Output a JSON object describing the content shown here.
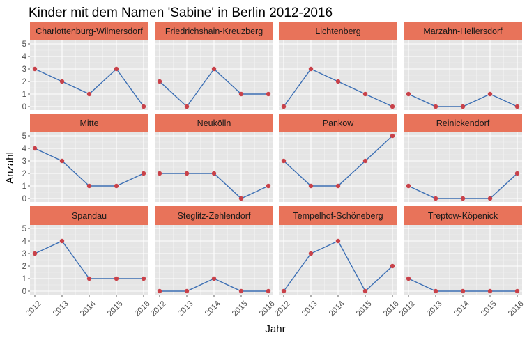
{
  "chart_data": {
    "type": "line",
    "title": "Kinder mit dem Namen 'Sabine' in Berlin 2012-2016",
    "xlabel": "Jahr",
    "ylabel": "Anzahl",
    "x": [
      2012,
      2013,
      2014,
      2015,
      2016
    ],
    "ylim": [
      0,
      5
    ],
    "y_ticks": [
      0,
      1,
      2,
      3,
      4,
      5
    ],
    "grid": true,
    "colors": {
      "panel_background": "#e5e5e5",
      "strip_background": "#e8735a",
      "line": "#3c6fb4",
      "point": "#c9424a"
    },
    "panels": [
      {
        "name": "Charlottenburg-Wilmersdorf",
        "values": [
          3,
          2,
          1,
          3,
          0
        ]
      },
      {
        "name": "Friedrichshain-Kreuzberg",
        "values": [
          2,
          0,
          3,
          1,
          1
        ]
      },
      {
        "name": "Lichtenberg",
        "values": [
          0,
          3,
          2,
          1,
          0
        ]
      },
      {
        "name": "Marzahn-Hellersdorf",
        "values": [
          1,
          0,
          0,
          1,
          0
        ]
      },
      {
        "name": "Mitte",
        "values": [
          4,
          3,
          1,
          1,
          2
        ]
      },
      {
        "name": "Neukölln",
        "values": [
          2,
          2,
          2,
          0,
          1
        ]
      },
      {
        "name": "Pankow",
        "values": [
          3,
          1,
          1,
          3,
          5
        ]
      },
      {
        "name": "Reinickendorf",
        "values": [
          1,
          0,
          0,
          0,
          2
        ]
      },
      {
        "name": "Spandau",
        "values": [
          3,
          4,
          1,
          1,
          1
        ]
      },
      {
        "name": "Steglitz-Zehlendorf",
        "values": [
          0,
          0,
          1,
          0,
          0
        ]
      },
      {
        "name": "Tempelhof-Schöneberg",
        "values": [
          0,
          3,
          4,
          0,
          2
        ]
      },
      {
        "name": "Treptow-Köpenick",
        "values": [
          1,
          0,
          0,
          0,
          0
        ]
      }
    ]
  }
}
